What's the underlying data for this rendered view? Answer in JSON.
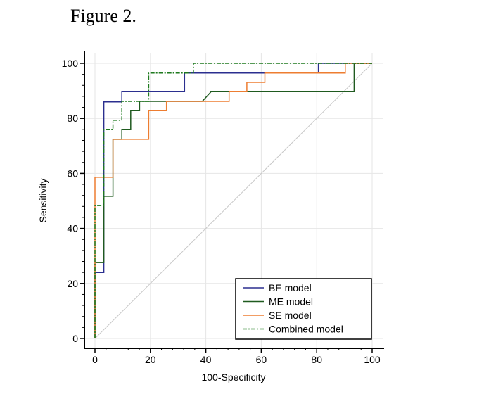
{
  "figure_title": "Figure 2.",
  "chart_data": {
    "type": "line",
    "xlabel": "100-Specificity",
    "ylabel": "Sensitivity",
    "xlim": [
      0,
      100
    ],
    "ylim": [
      0,
      100
    ],
    "xticks": [
      0,
      20,
      40,
      60,
      80,
      100
    ],
    "yticks": [
      0,
      20,
      40,
      60,
      80,
      100
    ],
    "grid": true,
    "legend_position": "bottom-right",
    "reference_line": {
      "name": "chance",
      "color": "#c8c8c8",
      "points": [
        [
          0,
          0
        ],
        [
          100,
          100
        ]
      ]
    },
    "series": [
      {
        "name": "BE model",
        "color": "#2b2f8f",
        "dash": "",
        "points": [
          [
            0,
            0
          ],
          [
            0,
            24
          ],
          [
            3.2,
            24
          ],
          [
            3.2,
            86
          ],
          [
            9.7,
            86
          ],
          [
            9.7,
            89.7
          ],
          [
            32.3,
            89.7
          ],
          [
            32.3,
            96.5
          ],
          [
            80.6,
            96.5
          ],
          [
            80.6,
            100
          ],
          [
            100,
            100
          ]
        ]
      },
      {
        "name": "ME model",
        "color": "#1f5a1f",
        "dash": "",
        "points": [
          [
            0,
            0
          ],
          [
            0,
            27.6
          ],
          [
            3.2,
            27.6
          ],
          [
            3.2,
            51.7
          ],
          [
            6.5,
            51.7
          ],
          [
            6.5,
            72.4
          ],
          [
            9.7,
            72.4
          ],
          [
            9.7,
            75.9
          ],
          [
            12.9,
            75.9
          ],
          [
            12.9,
            82.8
          ],
          [
            16.1,
            82.8
          ],
          [
            16.1,
            86.2
          ],
          [
            38.7,
            86.2
          ],
          [
            41.9,
            89.7
          ],
          [
            93.5,
            89.7
          ],
          [
            93.5,
            100
          ],
          [
            100,
            100
          ]
        ]
      },
      {
        "name": "SE model",
        "color": "#ed7d31",
        "dash": "",
        "points": [
          [
            0,
            0
          ],
          [
            0,
            58.6
          ],
          [
            6.5,
            58.6
          ],
          [
            6.5,
            72.4
          ],
          [
            19.4,
            72.4
          ],
          [
            19.4,
            82.8
          ],
          [
            25.8,
            82.8
          ],
          [
            25.8,
            86.2
          ],
          [
            48.4,
            86.2
          ],
          [
            48.4,
            89.7
          ],
          [
            54.8,
            89.7
          ],
          [
            54.8,
            93.1
          ],
          [
            61.3,
            93.1
          ],
          [
            61.3,
            96.5
          ],
          [
            90.3,
            96.5
          ],
          [
            90.3,
            100
          ],
          [
            100,
            100
          ]
        ]
      },
      {
        "name": "Combined model",
        "color": "#1f7a1f",
        "dash": "6,2,2,2",
        "points": [
          [
            0,
            0
          ],
          [
            0,
            48.3
          ],
          [
            3.2,
            48.3
          ],
          [
            3.2,
            75.9
          ],
          [
            6.5,
            75.9
          ],
          [
            6.5,
            79.3
          ],
          [
            9.7,
            79.3
          ],
          [
            9.7,
            86.2
          ],
          [
            19.4,
            86.2
          ],
          [
            19.4,
            96.5
          ],
          [
            35.5,
            96.5
          ],
          [
            35.5,
            100
          ],
          [
            100,
            100
          ]
        ]
      }
    ]
  }
}
